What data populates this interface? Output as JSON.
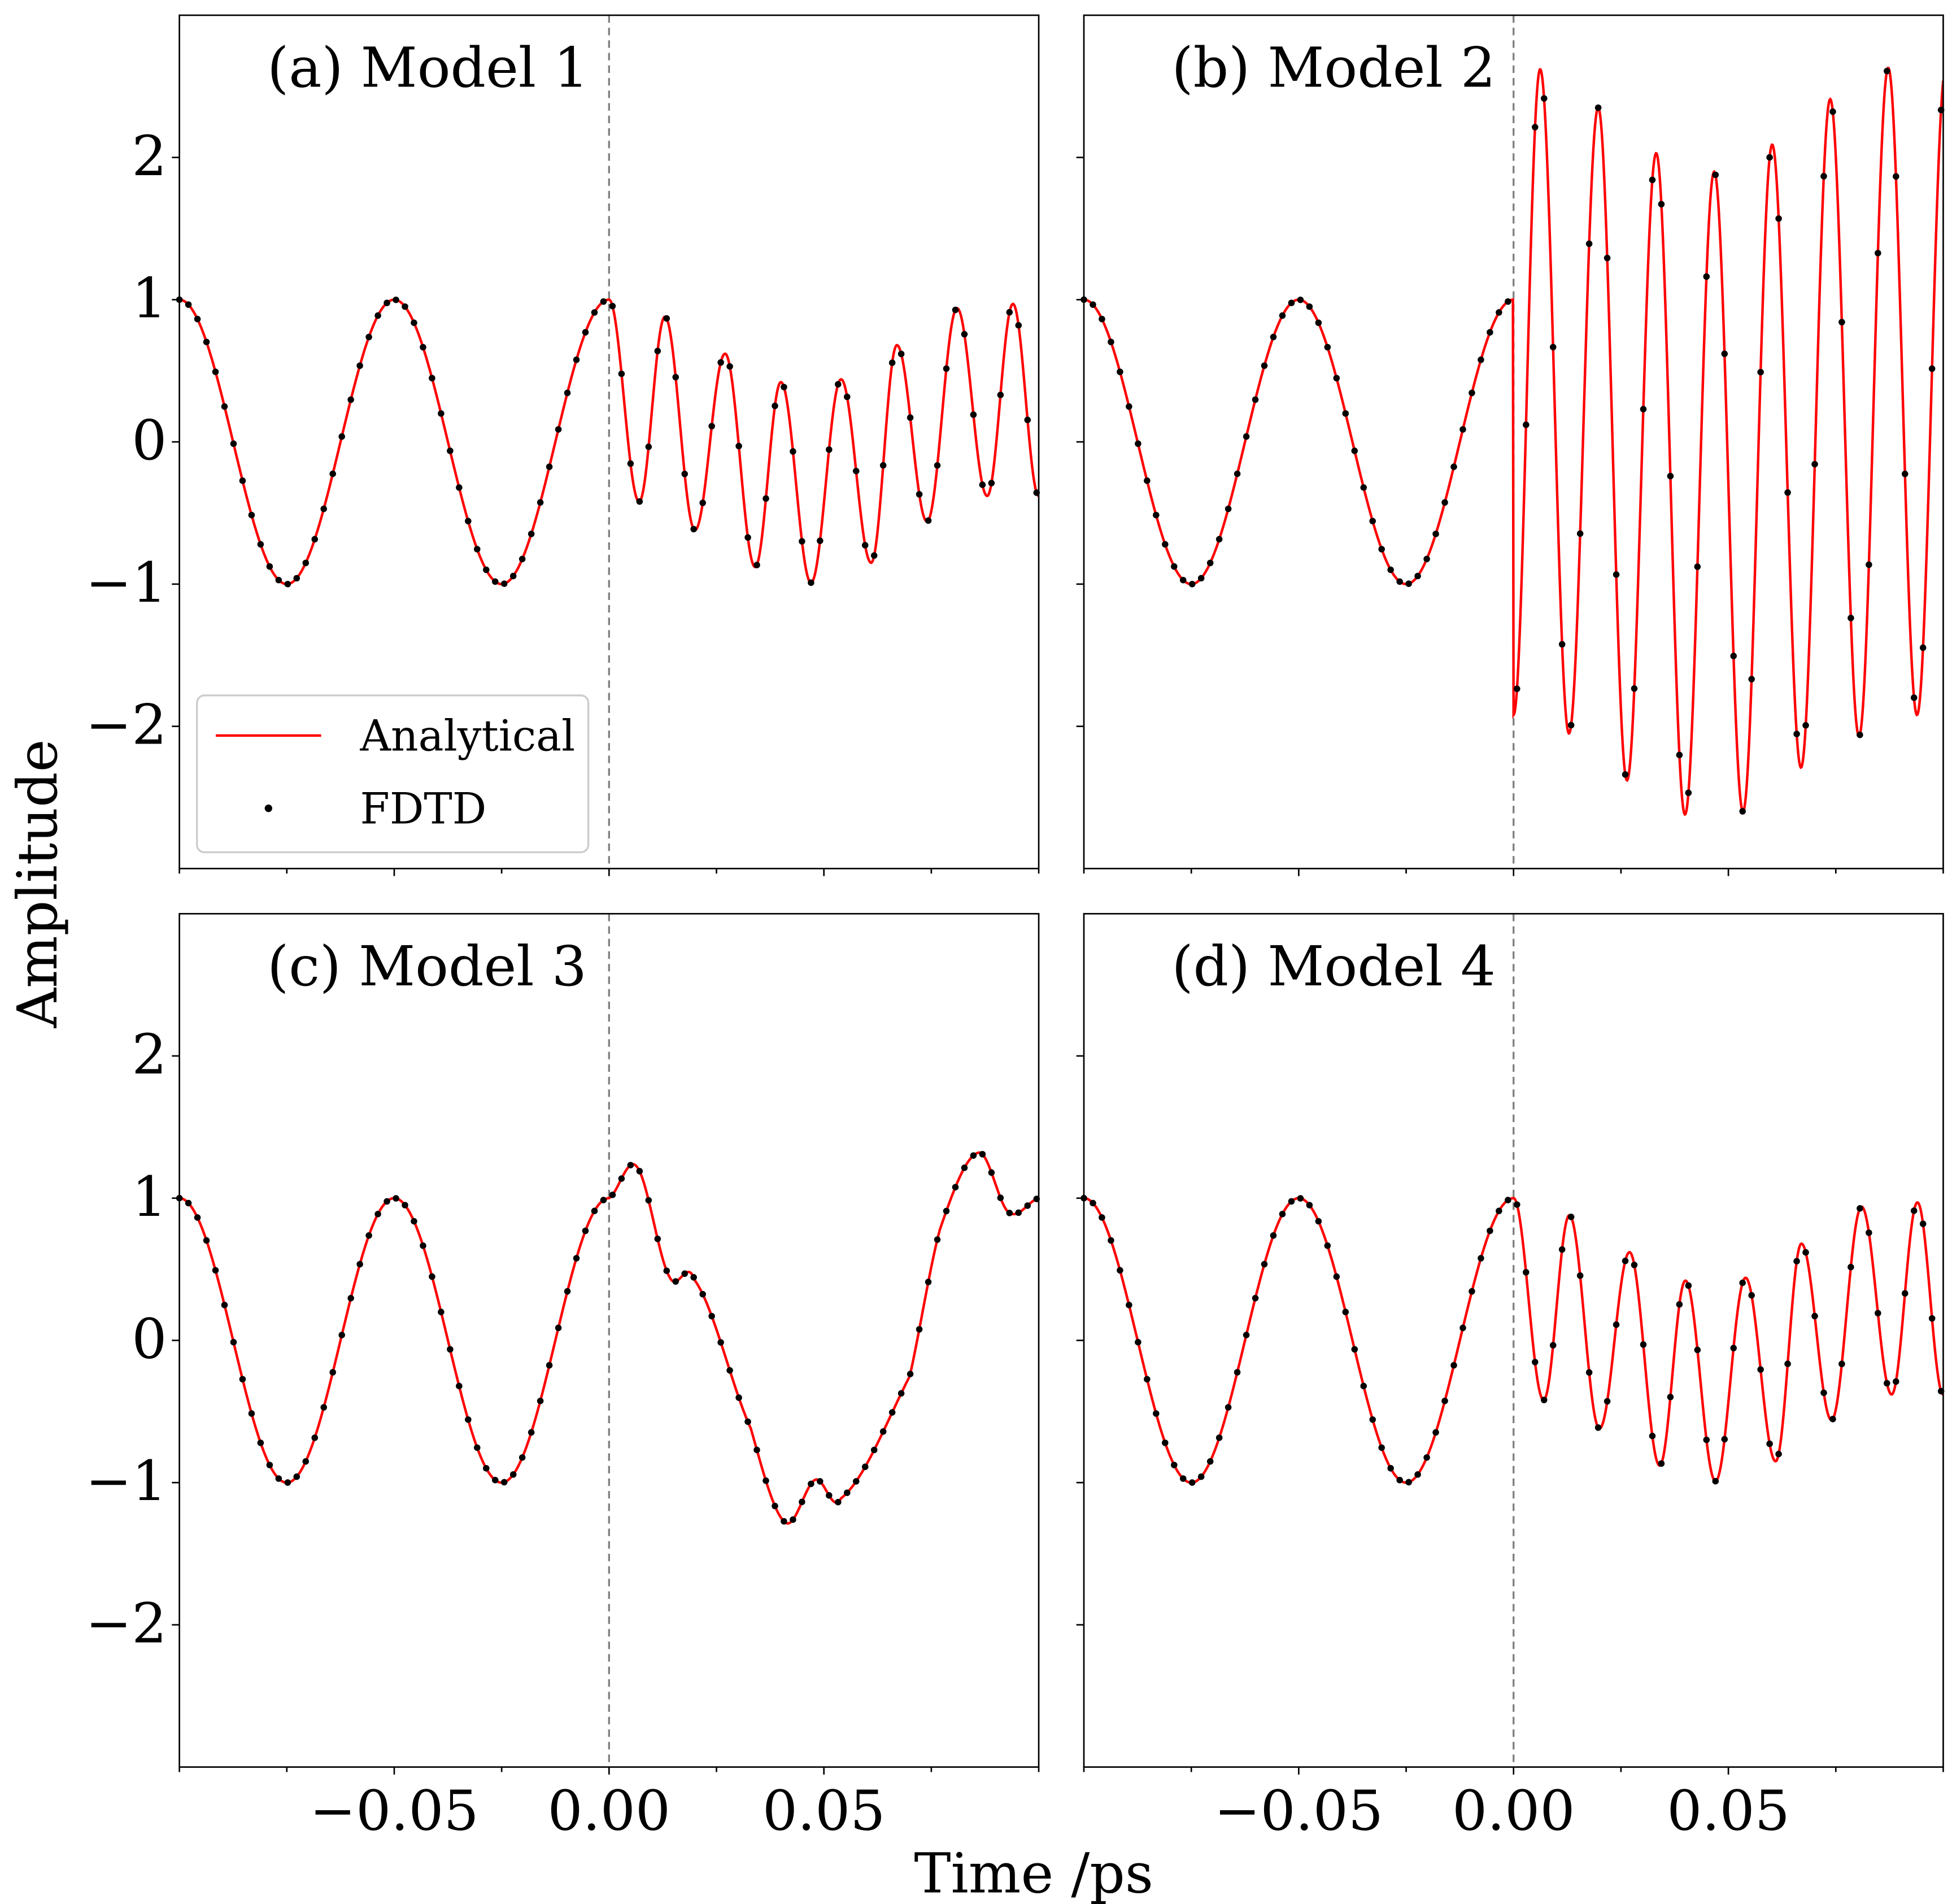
{
  "chart_data": {
    "type": "line",
    "xlabel": "Time /ps",
    "ylabel": "Amplitude",
    "xlim": [
      -0.1,
      0.1
    ],
    "ylim": [
      -3,
      3
    ],
    "xticks": [
      -0.05,
      0.0,
      0.05
    ],
    "xtick_labels": [
      "−0.05",
      "0.00",
      "0.05"
    ],
    "yticks": [
      2,
      1,
      0,
      -1,
      -2
    ],
    "ytick_labels": [
      "2",
      "1",
      "0",
      "−1",
      "−2"
    ],
    "grid": false,
    "legend": {
      "location": "lower-left of panel (a)",
      "entries": [
        "Analytical",
        "FDTD"
      ]
    },
    "colors": {
      "analytical": "#ff0000",
      "fdtd": "#000000",
      "divider": "#808080"
    },
    "divider_x": 0.0,
    "incident_wave": "cos(2*pi*t/0.05) for t < 0 (period 0.05 ps, amplitude 1)",
    "panels": [
      {
        "title": "(a) Model 1",
        "series": [
          {
            "name": "Analytical",
            "style": "red solid line"
          },
          {
            "name": "FDTD",
            "style": "black dots"
          }
        ],
        "after_zero": {
          "shape": "oscillation, period ~0.0135 ps, center shifted negative then returning",
          "peaks_t": [
            0.0,
            0.013,
            0.027,
            0.04,
            0.054,
            0.067,
            0.081,
            0.094
          ],
          "peaks_y": [
            1.0,
            0.88,
            0.62,
            0.42,
            0.44,
            0.68,
            0.94,
            0.97
          ],
          "troughs_t": [
            0.007,
            0.02,
            0.034,
            0.047,
            0.061,
            0.074,
            0.088
          ],
          "troughs_y": [
            -0.42,
            -0.62,
            -0.88,
            -0.99,
            -0.85,
            -0.56,
            -0.38
          ]
        }
      },
      {
        "title": "(b) Model 2",
        "series": [
          {
            "name": "Analytical",
            "style": "red solid line"
          },
          {
            "name": "FDTD",
            "style": "black dots"
          }
        ],
        "after_zero": {
          "shape": "large-amplitude oscillation, period ~0.0135 ps, amplitude 2.3 to 2.6, amplitude beating",
          "peaks_t": [
            0.0062,
            0.0197,
            0.0332,
            0.0467,
            0.0602,
            0.0737,
            0.0872
          ],
          "peaks_y": [
            2.62,
            2.35,
            2.03,
            1.9,
            2.09,
            2.41,
            2.63
          ],
          "troughs_t": [
            0.0,
            0.0129,
            0.0264,
            0.0399,
            0.0534,
            0.0669,
            0.0804,
            0.0939
          ],
          "troughs_y": [
            -1.92,
            -2.05,
            -2.38,
            -2.62,
            -2.6,
            -2.29,
            -2.07,
            -1.92
          ]
        }
      },
      {
        "title": "(c) Model 3",
        "series": [
          {
            "name": "Analytical",
            "style": "red solid line"
          },
          {
            "name": "FDTD",
            "style": "black dots"
          }
        ],
        "after_zero": {
          "shape": "slow envelope with small ripples",
          "points_t": [
            0.0,
            0.0065,
            0.014,
            0.02,
            0.033,
            0.041,
            0.048,
            0.054,
            0.07,
            0.077,
            0.086,
            0.093,
            0.1
          ],
          "points_y": [
            1.0,
            1.22,
            0.45,
            0.42,
            -0.62,
            -1.28,
            -0.98,
            -1.11,
            -0.25,
            0.78,
            1.32,
            0.9,
            1.0
          ]
        }
      },
      {
        "title": "(d) Model 4",
        "series": [
          {
            "name": "Analytical",
            "style": "red solid line"
          },
          {
            "name": "FDTD",
            "style": "black dots"
          }
        ],
        "after_zero": {
          "shape": "same as Model 1",
          "peaks_t": [
            0.0,
            0.013,
            0.027,
            0.04,
            0.054,
            0.067,
            0.081,
            0.094
          ],
          "peaks_y": [
            1.0,
            0.88,
            0.62,
            0.42,
            0.44,
            0.68,
            0.94,
            0.97
          ],
          "troughs_t": [
            0.007,
            0.02,
            0.034,
            0.047,
            0.061,
            0.074,
            0.088
          ],
          "troughs_y": [
            -0.42,
            -0.62,
            -0.88,
            -0.99,
            -0.85,
            -0.56,
            -0.38
          ]
        }
      }
    ]
  }
}
